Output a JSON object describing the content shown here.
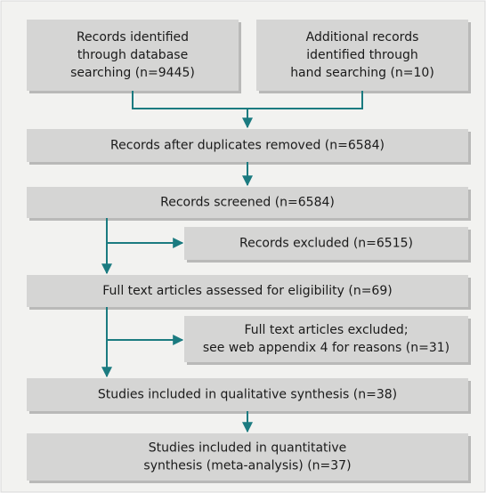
{
  "nodes": [
    {
      "lines": [
        "Records identified",
        "through database",
        "searching (n=9445)"
      ]
    },
    {
      "lines": [
        "Additional records",
        "identified through",
        "hand searching (n=10)"
      ]
    },
    {
      "lines": [
        "Records after duplicates removed (n=6584)"
      ]
    },
    {
      "lines": [
        "Records screened (n=6584)"
      ]
    },
    {
      "lines": [
        "Records excluded (n=6515)"
      ]
    },
    {
      "lines": [
        "Full text articles assessed for eligibility (n=69)"
      ]
    },
    {
      "lines": [
        "Full text articles excluded;",
        "see web appendix 4 for reasons (n=31)"
      ]
    },
    {
      "lines": [
        "Studies included in qualitative synthesis (n=38)"
      ]
    },
    {
      "lines": [
        "Studies included in quantitative",
        "synthesis (meta-analysis) (n=37)"
      ]
    }
  ]
}
